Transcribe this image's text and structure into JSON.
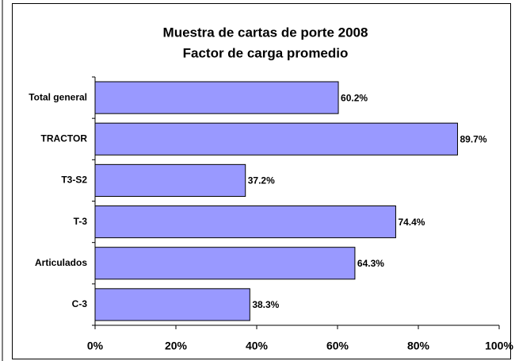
{
  "chart_data": {
    "type": "bar",
    "orientation": "horizontal",
    "title": "Muestra de cartas de porte 2008",
    "subtitle": "Factor de carga promedio",
    "categories": [
      "Total general",
      "TRACTOR",
      "T3-S2",
      "T-3",
      "Articulados",
      "C-3"
    ],
    "values": [
      60.2,
      89.7,
      37.2,
      74.4,
      64.3,
      38.3
    ],
    "value_labels": [
      "60.2%",
      "89.7%",
      "37.2%",
      "74.4%",
      "64.3%",
      "38.3%"
    ],
    "color": "#9999ff",
    "xlim": [
      0,
      100
    ],
    "xticks": [
      {
        "value": 0,
        "label": "0%"
      },
      {
        "value": 20,
        "label": "20%"
      },
      {
        "value": 40,
        "label": "40%"
      },
      {
        "value": 60,
        "label": "60%"
      },
      {
        "value": 80,
        "label": "80%"
      },
      {
        "value": 100,
        "label": "100%"
      }
    ],
    "grid": false
  }
}
